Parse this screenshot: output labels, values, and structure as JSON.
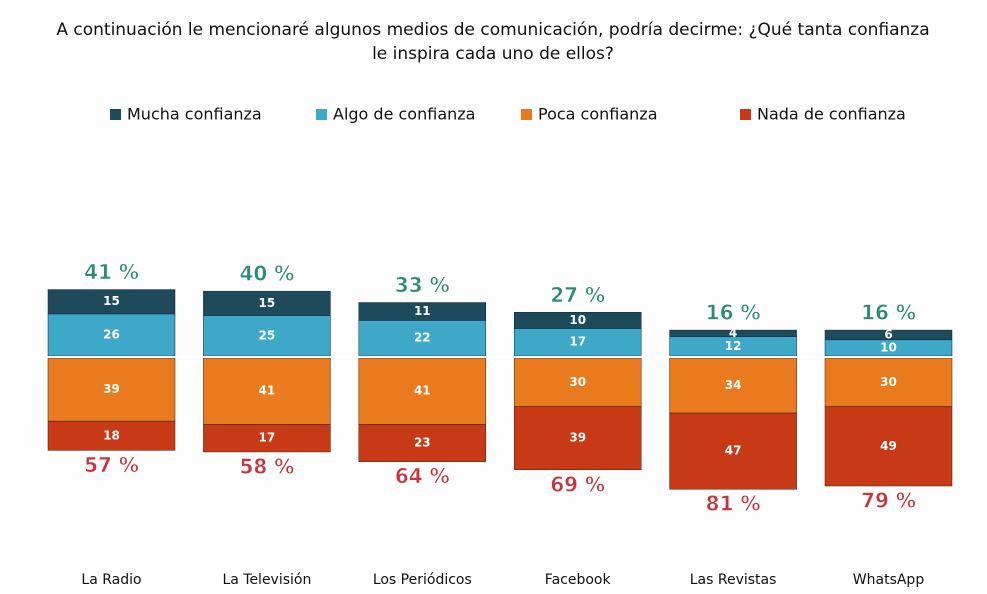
{
  "chart_data": {
    "type": "bar",
    "title": "A continuación le mencionaré algunos medios de comunicación, podría decirme: ¿Qué tanta confianza le inspira cada uno de ellos?",
    "categories": [
      "La Radio",
      "La Televisión",
      "Los Periódicos",
      "Facebook",
      "Las Revistas",
      "WhatsApp"
    ],
    "series": [
      {
        "name": "Mucha confianza",
        "color": "#1d4b5c",
        "values": [
          15,
          15,
          11,
          10,
          4,
          6
        ]
      },
      {
        "name": "Algo de confianza",
        "color": "#3ea8c8",
        "values": [
          26,
          25,
          22,
          17,
          12,
          10
        ]
      },
      {
        "name": "Poca confianza",
        "color": "#e97a1e",
        "values": [
          39,
          41,
          41,
          30,
          34,
          30
        ]
      },
      {
        "name": "Nada de confianza",
        "color": "#c83a16",
        "values": [
          18,
          17,
          23,
          39,
          47,
          49
        ]
      }
    ],
    "top_totals": {
      "values": [
        41,
        40,
        33,
        27,
        16,
        16
      ],
      "value_labels": [
        "41 %",
        "40 %",
        "33 %",
        "27 %",
        "16 %",
        "16 %"
      ],
      "color": "#2b8a72"
    },
    "bottom_totals": {
      "values": [
        57,
        58,
        64,
        69,
        81,
        79
      ],
      "value_labels": [
        "57 %",
        "58 %",
        "64 %",
        "69 %",
        "81 %",
        "79 %"
      ],
      "color": "#c8323a"
    }
  }
}
